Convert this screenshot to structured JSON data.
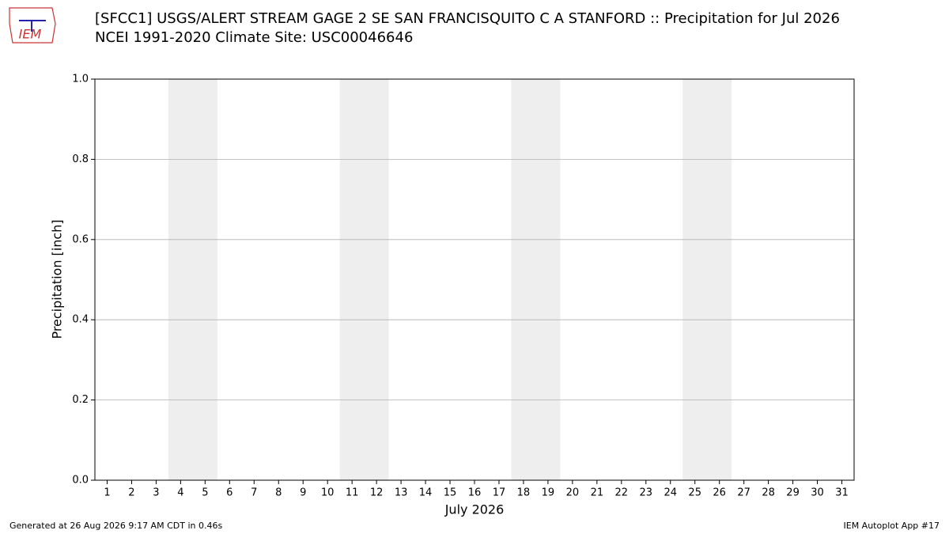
{
  "chart_data": {
    "type": "bar",
    "title": "[SFCC1] USGS/ALERT STREAM GAGE 2 SE SAN FRANCISQUITO C A STANFORD :: Precipitation for Jul 2026",
    "subtitle": "NCEI 1991-2020 Climate Site: USC00046646",
    "ylabel": "Precipitation [inch]",
    "xlabel": "July 2026",
    "categories": [
      1,
      2,
      3,
      4,
      5,
      6,
      7,
      8,
      9,
      10,
      11,
      12,
      13,
      14,
      15,
      16,
      17,
      18,
      19,
      20,
      21,
      22,
      23,
      24,
      25,
      26,
      27,
      28,
      29,
      30,
      31
    ],
    "values": [
      null,
      null,
      null,
      null,
      null,
      null,
      null,
      null,
      null,
      null,
      null,
      null,
      null,
      null,
      null,
      null,
      null,
      null,
      null,
      null,
      null,
      null,
      null,
      null,
      null,
      null,
      null,
      null,
      null,
      null,
      null
    ],
    "color": "#1f77b4",
    "xlim": [
      0.5,
      31.5
    ],
    "ylim": [
      0,
      1
    ],
    "yticks": [
      {
        "value": 0,
        "label": "0.0"
      },
      0.2,
      0.4,
      0.6,
      0.8,
      {
        "value": 1,
        "label": "1.0"
      }
    ],
    "grid": true,
    "shaded_spans": [
      [
        3.5,
        5.5
      ],
      [
        10.5,
        12.5
      ],
      [
        17.5,
        19.5
      ],
      [
        24.5,
        26.5
      ]
    ],
    "shade_color": "#eeeeee"
  },
  "logo_text": "IEM",
  "footer_left": "Generated at 26 Aug 2026 9:17 AM CDT in 0.46s",
  "footer_right": "IEM Autoplot App #17"
}
